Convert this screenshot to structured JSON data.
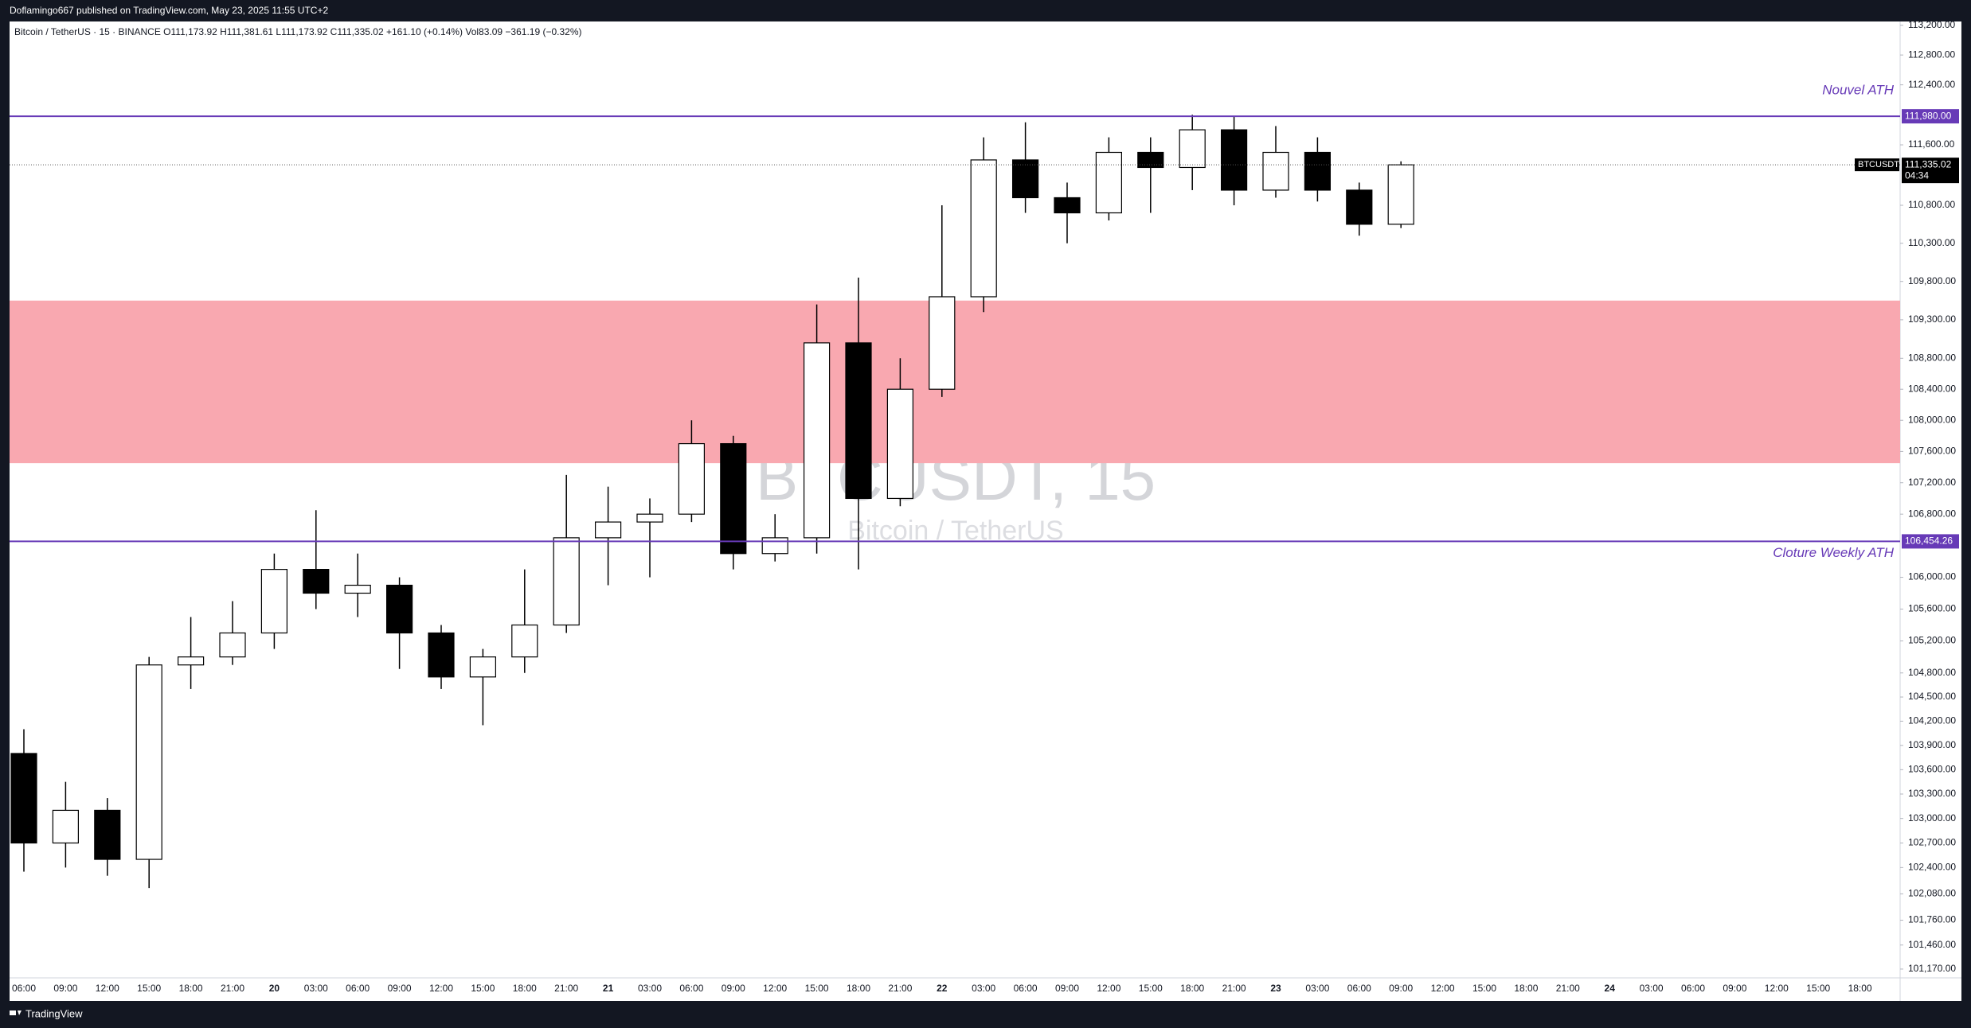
{
  "header": {
    "published": "Doflamingo667 published on TradingView.com, May 23, 2025 11:55 UTC+2",
    "brand": "TradingView"
  },
  "chart_data": {
    "type": "candlestick",
    "legend": "Bitcoin / TetherUS · 15 · BINANCE   O111,173.92  H111,381.61  L111,173.92  C111,335.02  +161.10 (+0.14%)   Vol83.09  −361.19 (−0.32%)",
    "watermark": "BTCUSDT, 15",
    "watermark_subtitle": "Bitcoin / TetherUS",
    "log_scale": true,
    "grid": false,
    "up_color": "#ffffff",
    "down_color": "#000000",
    "categories": [
      "06:00",
      "09:00",
      "12:00",
      "15:00",
      "18:00",
      "21:00",
      "20",
      "03:00",
      "06:00",
      "09:00",
      "12:00",
      "15:00",
      "18:00",
      "21:00",
      "21",
      "03:00",
      "06:00",
      "09:00",
      "12:00",
      "15:00",
      "18:00",
      "21:00",
      "22",
      "03:00",
      "06:00",
      "09:00",
      "12:00",
      "15:00",
      "18:00",
      "21:00",
      "23",
      "03:00",
      "06:00",
      "09:00",
      "12:00",
      "15:00",
      "18:00",
      "21:00",
      "24",
      "03:00",
      "06:00",
      "09:00",
      "12:00",
      "15:00",
      "18:00"
    ],
    "open": [
      103800,
      102700,
      103100,
      102500,
      104900,
      105000,
      105300,
      106100,
      105800,
      105900,
      105300,
      104750,
      105000,
      105400,
      106500,
      106700,
      106800,
      107700,
      106300,
      106500,
      109000,
      107000,
      108400,
      109600,
      111400,
      110900,
      110700,
      111500,
      111300,
      111800,
      111000,
      111500,
      111000,
      110550,
      null,
      null,
      null,
      null,
      null,
      null,
      null,
      null,
      null,
      null,
      null
    ],
    "high": [
      104100,
      103450,
      103250,
      105000,
      105500,
      105700,
      106300,
      106850,
      106300,
      106000,
      105400,
      105100,
      106100,
      107300,
      107150,
      107000,
      108000,
      107800,
      106800,
      109500,
      109850,
      108800,
      110800,
      111700,
      111900,
      111100,
      111700,
      111700,
      112000,
      111980,
      111850,
      111700,
      111100,
      111381,
      null,
      null,
      null,
      null,
      null,
      null,
      null,
      null,
      null,
      null,
      null
    ],
    "low": [
      102350,
      102400,
      102300,
      102150,
      104600,
      104900,
      105100,
      105600,
      105500,
      104850,
      104600,
      104150,
      104800,
      105300,
      105900,
      106000,
      106700,
      106100,
      106200,
      106300,
      106100,
      106900,
      108300,
      109400,
      110700,
      110300,
      110600,
      110700,
      111000,
      110800,
      110900,
      110850,
      110400,
      110500,
      null,
      null,
      null,
      null,
      null,
      null,
      null,
      null,
      null,
      null,
      null
    ],
    "close": [
      102700,
      103100,
      102500,
      104900,
      105000,
      105300,
      106100,
      105800,
      105900,
      105300,
      104750,
      105000,
      105400,
      106500,
      106700,
      106800,
      107700,
      106300,
      106500,
      109000,
      107000,
      108400,
      109600,
      111400,
      110900,
      110700,
      111500,
      111300,
      111800,
      111000,
      111500,
      111000,
      110550,
      111335,
      null,
      null,
      null,
      null,
      null,
      null,
      null,
      null,
      null,
      null,
      null
    ],
    "ylim": [
      101064,
      113251
    ],
    "yticks": [
      {
        "value": 113200,
        "label": "113,200.00"
      },
      {
        "value": 112800,
        "label": "112,800.00"
      },
      {
        "value": 112400,
        "label": "112,400.00"
      },
      {
        "value": 111600,
        "label": "111,600.00"
      },
      {
        "value": 110800,
        "label": "110,800.00"
      },
      {
        "value": 110300,
        "label": "110,300.00"
      },
      {
        "value": 109800,
        "label": "109,800.00"
      },
      {
        "value": 109300,
        "label": "109,300.00"
      },
      {
        "value": 108800,
        "label": "108,800.00"
      },
      {
        "value": 108400,
        "label": "108,400.00"
      },
      {
        "value": 108000,
        "label": "108,000.00"
      },
      {
        "value": 107600,
        "label": "107,600.00"
      },
      {
        "value": 107200,
        "label": "107,200.00"
      },
      {
        "value": 106800,
        "label": "106,800.00"
      },
      {
        "value": 106000,
        "label": "106,000.00"
      },
      {
        "value": 105600,
        "label": "105,600.00"
      },
      {
        "value": 105200,
        "label": "105,200.00"
      },
      {
        "value": 104800,
        "label": "104,800.00"
      },
      {
        "value": 104500,
        "label": "104,500.00"
      },
      {
        "value": 104200,
        "label": "104,200.00"
      },
      {
        "value": 103900,
        "label": "103,900.00"
      },
      {
        "value": 103600,
        "label": "103,600.00"
      },
      {
        "value": 103300,
        "label": "103,300.00"
      },
      {
        "value": 103000,
        "label": "103,000.00"
      },
      {
        "value": 102700,
        "label": "102,700.00"
      },
      {
        "value": 102400,
        "label": "102,400.00"
      },
      {
        "value": 102080,
        "label": "102,080.00"
      },
      {
        "value": 101760,
        "label": "101,760.00"
      },
      {
        "value": 101460,
        "label": "101,460.00"
      },
      {
        "value": 101170,
        "label": "101,170.00"
      }
    ],
    "zone": {
      "from": 107450,
      "to": 109550,
      "color": "#f9a8b0"
    },
    "lines": [
      {
        "name": "Nouvel ATH",
        "value": 111980,
        "label": "111,980.00",
        "color": "#673ab7",
        "label_position": "above"
      },
      {
        "name": "Cloture Weekly ATH",
        "value": 106454.26,
        "label": "106,454.26",
        "color": "#673ab7",
        "label_position": "below"
      }
    ],
    "last_price": {
      "symbol": "BTCUSDT",
      "value": 111335.02,
      "label": "111,335.02",
      "countdown": "04:34"
    }
  }
}
